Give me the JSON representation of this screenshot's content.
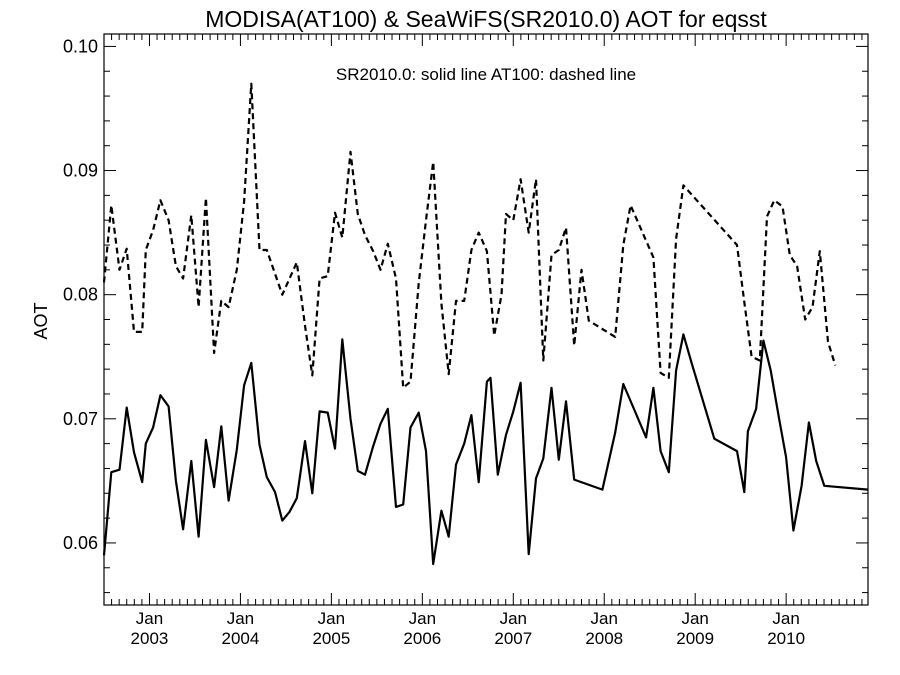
{
  "chart_data": {
    "type": "line",
    "title": "MODISA(AT100) & SeaWiFS(SR2010.0)  AOT for eqsst",
    "annotation": "SR2010.0: solid line   AT100: dashed line",
    "ylabel": "AOT",
    "xlabel": "",
    "xlim": [
      2002.5,
      2010.9
    ],
    "ylim": [
      0.055,
      0.101
    ],
    "yticks": [
      0.06,
      0.07,
      0.08,
      0.09,
      0.1
    ],
    "ytick_labels": [
      "0.06",
      "0.07",
      "0.08",
      "0.09",
      "0.10"
    ],
    "xticks": [
      {
        "x": 2003,
        "month": "Jan",
        "year": "2003"
      },
      {
        "x": 2004,
        "month": "Jan",
        "year": "2004"
      },
      {
        "x": 2005,
        "month": "Jan",
        "year": "2005"
      },
      {
        "x": 2006,
        "month": "Jan",
        "year": "2006"
      },
      {
        "x": 2007,
        "month": "Jan",
        "year": "2007"
      },
      {
        "x": 2008,
        "month": "Jan",
        "year": "2008"
      },
      {
        "x": 2009,
        "month": "Jan",
        "year": "2009"
      },
      {
        "x": 2010,
        "month": "Jan",
        "year": "2010"
      }
    ],
    "grid": false,
    "line_color": "#000000",
    "series": [
      {
        "style": "solid",
        "points": [
          [
            2002.5,
            0.059
          ],
          [
            2002.58,
            0.0657
          ],
          [
            2002.67,
            0.0659
          ],
          [
            2002.75,
            0.0709
          ],
          [
            2002.83,
            0.0673
          ],
          [
            2002.92,
            0.0649
          ],
          [
            2002.96,
            0.068
          ],
          [
            2003.04,
            0.0693
          ],
          [
            2003.12,
            0.0719
          ],
          [
            2003.21,
            0.071
          ],
          [
            2003.29,
            0.065
          ],
          [
            2003.37,
            0.0611
          ],
          [
            2003.46,
            0.0666
          ],
          [
            2003.54,
            0.0605
          ],
          [
            2003.62,
            0.0683
          ],
          [
            2003.71,
            0.0645
          ],
          [
            2003.79,
            0.0694
          ],
          [
            2003.87,
            0.0634
          ],
          [
            2003.96,
            0.0675
          ],
          [
            2004.04,
            0.0727
          ],
          [
            2004.12,
            0.0745
          ],
          [
            2004.21,
            0.0679
          ],
          [
            2004.29,
            0.0653
          ],
          [
            2004.38,
            0.0641
          ],
          [
            2004.46,
            0.0618
          ],
          [
            2004.54,
            0.0625
          ],
          [
            2004.62,
            0.0636
          ],
          [
            2004.71,
            0.0682
          ],
          [
            2004.79,
            0.064
          ],
          [
            2004.87,
            0.0706
          ],
          [
            2004.96,
            0.0705
          ],
          [
            2005.04,
            0.0676
          ],
          [
            2005.12,
            0.0764
          ],
          [
            2005.21,
            0.07
          ],
          [
            2005.29,
            0.0658
          ],
          [
            2005.37,
            0.0655
          ],
          [
            2005.46,
            0.0678
          ],
          [
            2005.54,
            0.0696
          ],
          [
            2005.62,
            0.0708
          ],
          [
            2005.71,
            0.0629
          ],
          [
            2005.79,
            0.0631
          ],
          [
            2005.87,
            0.0693
          ],
          [
            2005.96,
            0.0705
          ],
          [
            2006.04,
            0.0674
          ],
          [
            2006.12,
            0.0583
          ],
          [
            2006.21,
            0.0626
          ],
          [
            2006.29,
            0.0605
          ],
          [
            2006.37,
            0.0663
          ],
          [
            2006.46,
            0.068
          ],
          [
            2006.54,
            0.0703
          ],
          [
            2006.62,
            0.0649
          ],
          [
            2006.71,
            0.073
          ],
          [
            2006.75,
            0.0733
          ],
          [
            2006.83,
            0.0655
          ],
          [
            2006.92,
            0.0687
          ],
          [
            2007.0,
            0.0706
          ],
          [
            2007.08,
            0.0729
          ],
          [
            2007.17,
            0.0591
          ],
          [
            2007.25,
            0.0652
          ],
          [
            2007.33,
            0.0668
          ],
          [
            2007.42,
            0.0725
          ],
          [
            2007.5,
            0.0667
          ],
          [
            2007.58,
            0.0714
          ],
          [
            2007.67,
            0.0651
          ],
          [
            2007.98,
            0.0643
          ],
          [
            2008.12,
            0.0689
          ],
          [
            2008.21,
            0.0728
          ],
          [
            2008.46,
            0.0685
          ],
          [
            2008.54,
            0.0725
          ],
          [
            2008.62,
            0.0674
          ],
          [
            2008.71,
            0.0657
          ],
          [
            2008.79,
            0.0739
          ],
          [
            2008.87,
            0.0768
          ],
          [
            2008.96,
            0.0745
          ],
          [
            2009.21,
            0.0684
          ],
          [
            2009.46,
            0.0674
          ],
          [
            2009.54,
            0.0641
          ],
          [
            2009.58,
            0.069
          ],
          [
            2009.67,
            0.0708
          ],
          [
            2009.75,
            0.0763
          ],
          [
            2009.83,
            0.0739
          ],
          [
            2009.92,
            0.0701
          ],
          [
            2010.0,
            0.0669
          ],
          [
            2010.08,
            0.061
          ],
          [
            2010.17,
            0.0646
          ],
          [
            2010.25,
            0.0697
          ],
          [
            2010.33,
            0.0666
          ],
          [
            2010.42,
            0.0646
          ],
          [
            2010.9,
            0.0643
          ]
        ]
      },
      {
        "style": "dashed",
        "points": [
          [
            2002.5,
            0.081
          ],
          [
            2002.58,
            0.0872
          ],
          [
            2002.67,
            0.082
          ],
          [
            2002.75,
            0.0837
          ],
          [
            2002.83,
            0.077
          ],
          [
            2002.92,
            0.077
          ],
          [
            2002.96,
            0.0836
          ],
          [
            2003.04,
            0.0852
          ],
          [
            2003.12,
            0.0876
          ],
          [
            2003.21,
            0.086
          ],
          [
            2003.29,
            0.0823
          ],
          [
            2003.37,
            0.0813
          ],
          [
            2003.46,
            0.0864
          ],
          [
            2003.54,
            0.079
          ],
          [
            2003.62,
            0.0878
          ],
          [
            2003.71,
            0.0753
          ],
          [
            2003.79,
            0.0795
          ],
          [
            2003.87,
            0.079
          ],
          [
            2003.96,
            0.082
          ],
          [
            2004.04,
            0.0875
          ],
          [
            2004.12,
            0.097
          ],
          [
            2004.21,
            0.0836
          ],
          [
            2004.29,
            0.0836
          ],
          [
            2004.46,
            0.08
          ],
          [
            2004.62,
            0.0826
          ],
          [
            2004.71,
            0.0775
          ],
          [
            2004.79,
            0.0735
          ],
          [
            2004.87,
            0.0813
          ],
          [
            2004.96,
            0.0815
          ],
          [
            2005.04,
            0.0866
          ],
          [
            2005.12,
            0.0846
          ],
          [
            2005.21,
            0.0915
          ],
          [
            2005.29,
            0.0865
          ],
          [
            2005.37,
            0.0848
          ],
          [
            2005.46,
            0.0835
          ],
          [
            2005.54,
            0.082
          ],
          [
            2005.62,
            0.0841
          ],
          [
            2005.71,
            0.0813
          ],
          [
            2005.79,
            0.0725
          ],
          [
            2005.87,
            0.073
          ],
          [
            2005.96,
            0.0809
          ],
          [
            2006.04,
            0.086
          ],
          [
            2006.12,
            0.0907
          ],
          [
            2006.21,
            0.0793
          ],
          [
            2006.29,
            0.0736
          ],
          [
            2006.37,
            0.0795
          ],
          [
            2006.46,
            0.0795
          ],
          [
            2006.54,
            0.0836
          ],
          [
            2006.62,
            0.085
          ],
          [
            2006.71,
            0.0835
          ],
          [
            2006.79,
            0.0767
          ],
          [
            2006.87,
            0.08
          ],
          [
            2006.92,
            0.0865
          ],
          [
            2007.0,
            0.086
          ],
          [
            2007.08,
            0.0893
          ],
          [
            2007.17,
            0.085
          ],
          [
            2007.25,
            0.0893
          ],
          [
            2007.33,
            0.0747
          ],
          [
            2007.42,
            0.0832
          ],
          [
            2007.5,
            0.0836
          ],
          [
            2007.58,
            0.0854
          ],
          [
            2007.67,
            0.0759
          ],
          [
            2007.75,
            0.082
          ],
          [
            2007.83,
            0.0779
          ],
          [
            2008.12,
            0.0766
          ],
          [
            2008.21,
            0.084
          ],
          [
            2008.29,
            0.0872
          ],
          [
            2008.54,
            0.083
          ],
          [
            2008.62,
            0.0737
          ],
          [
            2008.71,
            0.0733
          ],
          [
            2008.79,
            0.0845
          ],
          [
            2008.87,
            0.0888
          ],
          [
            2009.46,
            0.084
          ],
          [
            2009.54,
            0.0794
          ],
          [
            2009.62,
            0.075
          ],
          [
            2009.71,
            0.0747
          ],
          [
            2009.79,
            0.0863
          ],
          [
            2009.87,
            0.0876
          ],
          [
            2009.96,
            0.0871
          ],
          [
            2010.04,
            0.0832
          ],
          [
            2010.12,
            0.0823
          ],
          [
            2010.21,
            0.078
          ],
          [
            2010.29,
            0.079
          ],
          [
            2010.37,
            0.0835
          ],
          [
            2010.46,
            0.0762
          ],
          [
            2010.54,
            0.0743
          ]
        ]
      }
    ]
  }
}
